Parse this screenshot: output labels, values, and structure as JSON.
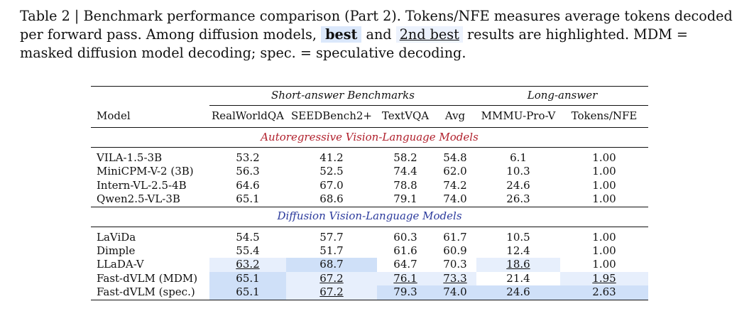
{
  "caption": {
    "part1": "Table 2 | Benchmark performance comparison (Part 2).  Tokens/NFE measures average tokens decoded per forward pass. Among diffusion models,",
    "best": "best",
    "and": "and",
    "second": "2nd best",
    "part2": "results are highlighted. MDM = masked diffusion model decoding; spec. = speculative decoding."
  },
  "groups": {
    "short": "Short-answer Benchmarks",
    "long": "Long-answer"
  },
  "columns": [
    "Model",
    "RealWorldQA",
    "SEEDBench2+",
    "TextVQA",
    "Avg",
    "MMMU-Pro-V",
    "Tokens/NFE"
  ],
  "sections": {
    "ar": "Autoregressive Vision-Language Models",
    "diff": "Diffusion Vision-Language Models"
  },
  "colors": {
    "best_bg": "#cfe0f8",
    "second_bg": "#e7effc",
    "ar_title": "#b01f2b",
    "diff_title": "#2b3a9c"
  },
  "ar_rows": [
    {
      "model": "VILA-1.5-3B",
      "v": [
        "53.2",
        "41.2",
        "58.2",
        "54.8",
        "6.1",
        "1.00"
      ]
    },
    {
      "model": "MiniCPM-V-2 (3B)",
      "v": [
        "56.3",
        "52.5",
        "74.4",
        "62.0",
        "10.3",
        "1.00"
      ]
    },
    {
      "model": "Intern-VL-2.5-4B",
      "v": [
        "64.6",
        "67.0",
        "78.8",
        "74.2",
        "24.6",
        "1.00"
      ]
    },
    {
      "model": "Qwen2.5-VL-3B",
      "v": [
        "65.1",
        "68.6",
        "79.1",
        "74.0",
        "26.3",
        "1.00"
      ]
    }
  ],
  "diff_rows": [
    {
      "model": "LaViDa",
      "v": [
        "54.5",
        "57.7",
        "60.3",
        "61.7",
        "10.5",
        "1.00"
      ]
    },
    {
      "model": "Dimple",
      "v": [
        "55.4",
        "51.7",
        "61.6",
        "60.9",
        "12.4",
        "1.00"
      ]
    },
    {
      "model": "LLaDA-V",
      "v": [
        "63.2",
        "68.7",
        "64.7",
        "70.3",
        "18.6",
        "1.00"
      ]
    },
    {
      "model": "Fast-dVLM (MDM)",
      "v": [
        "65.1",
        "67.2",
        "76.1",
        "73.3",
        "21.4",
        "1.95"
      ]
    },
    {
      "model": "Fast-dVLM (spec.)",
      "v": [
        "65.1",
        "67.2",
        "79.3",
        "74.0",
        "24.6",
        "2.63"
      ]
    }
  ]
}
